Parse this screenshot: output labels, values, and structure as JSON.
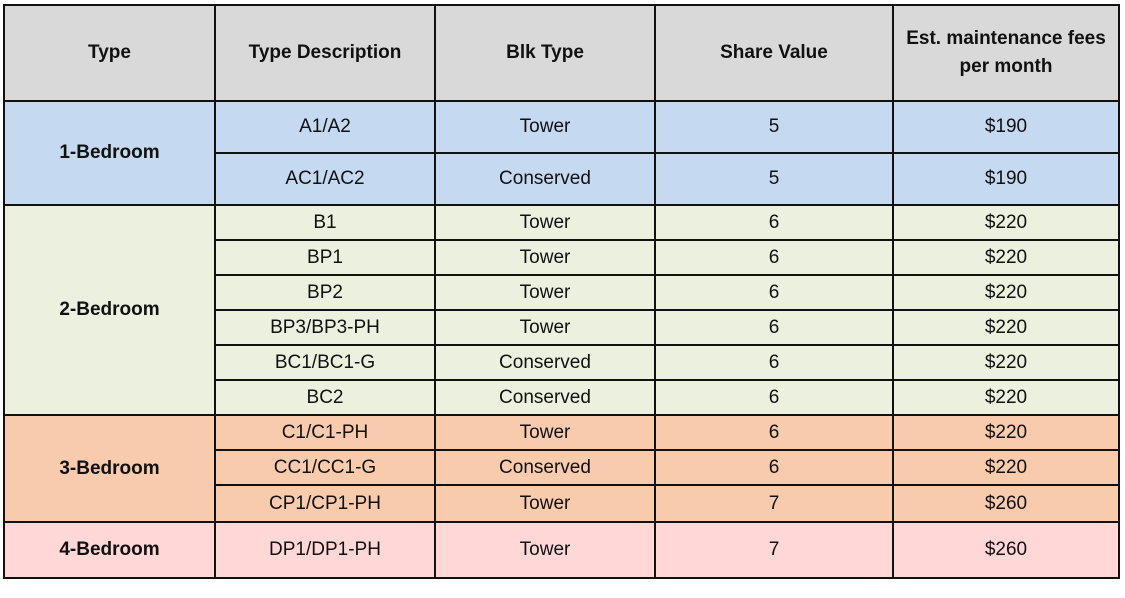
{
  "headers": [
    "Type",
    "Type Description",
    "Blk Type",
    "Share Value",
    "Est. maintenance fees per month"
  ],
  "groups": [
    {
      "type": "1-Bedroom",
      "color": "#c5d9f1",
      "rows": [
        {
          "description": "A1/A2",
          "blk_type": "Tower",
          "share_value": "5",
          "fee": "$190"
        },
        {
          "description": "AC1/AC2",
          "blk_type": "Conserved",
          "share_value": "5",
          "fee": "$190"
        }
      ]
    },
    {
      "type": "2-Bedroom",
      "color": "#ebf1de",
      "rows": [
        {
          "description": "B1",
          "blk_type": "Tower",
          "share_value": "6",
          "fee": "$220"
        },
        {
          "description": "BP1",
          "blk_type": "Tower",
          "share_value": "6",
          "fee": "$220"
        },
        {
          "description": "BP2",
          "blk_type": "Tower",
          "share_value": "6",
          "fee": "$220"
        },
        {
          "description": "BP3/BP3-PH",
          "blk_type": "Tower",
          "share_value": "6",
          "fee": "$220"
        },
        {
          "description": "BC1/BC1-G",
          "blk_type": "Conserved",
          "share_value": "6",
          "fee": "$220"
        },
        {
          "description": "BC2",
          "blk_type": "Conserved",
          "share_value": "6",
          "fee": "$220"
        }
      ]
    },
    {
      "type": "3-Bedroom",
      "color": "#f8cbad",
      "rows": [
        {
          "description": "C1/C1-PH",
          "blk_type": "Tower",
          "share_value": "6",
          "fee": "$220"
        },
        {
          "description": "CC1/CC1-G",
          "blk_type": "Conserved",
          "share_value": "6",
          "fee": "$220"
        },
        {
          "description": "CP1/CP1-PH",
          "blk_type": "Tower",
          "share_value": "7",
          "fee": "$260"
        }
      ]
    },
    {
      "type": "4-Bedroom",
      "color": "#ffd7d7",
      "rows": [
        {
          "description": "DP1/DP1-PH",
          "blk_type": "Tower",
          "share_value": "7",
          "fee": "$260"
        }
      ]
    }
  ]
}
